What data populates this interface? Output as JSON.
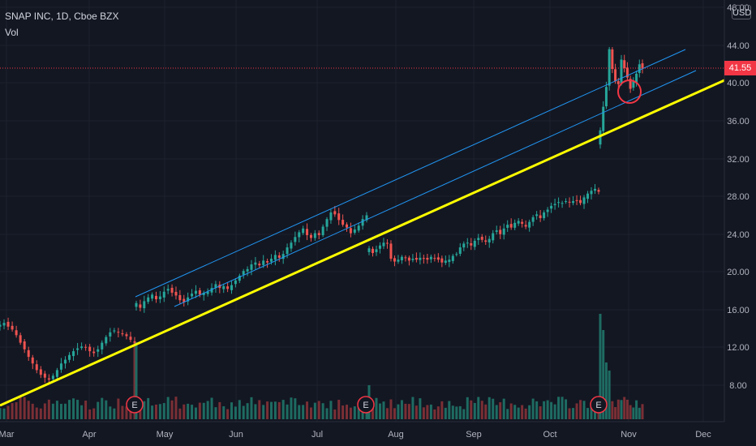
{
  "header": {
    "symbol_line": "SNAP INC, 1D, Cboe BZX",
    "indicator": "Vol",
    "currency": "USD"
  },
  "last_price": "41.55",
  "colors": {
    "background": "#131722",
    "grid": "#1e222d",
    "up": "#26a69a",
    "down": "#ef5350",
    "vol_up": "#1e6b62",
    "vol_down": "#7a2f35",
    "trendline": "#ffff00",
    "channel": "#2196f3",
    "circle": "#f23645",
    "earnings": "#f23645"
  },
  "chart_data": {
    "type": "candlestick",
    "y_ticks": [
      "8.00",
      "12.00",
      "16.00",
      "20.00",
      "24.00",
      "28.00",
      "32.00",
      "36.00",
      "40.00",
      "44.00",
      "48.00"
    ],
    "x_ticks": [
      "Mar",
      "Apr",
      "May",
      "Jun",
      "Jul",
      "Aug",
      "Sep",
      "Oct",
      "Nov",
      "Dec"
    ],
    "ylim": [
      4.2,
      48.5
    ],
    "last_price": 41.55,
    "series": [
      {
        "segment": "mar-apr",
        "date_range": [
          "Mar 1",
          "Apr 20"
        ],
        "closes": [
          14.4,
          14.6,
          14.2,
          13.9,
          13.3,
          12.5,
          11.8,
          11.0,
          10.3,
          9.6,
          9.1,
          8.8,
          8.6,
          9.0,
          9.6,
          10.3,
          10.7,
          11.2,
          11.6,
          11.9,
          12.1,
          12.0,
          11.6,
          11.4,
          11.8,
          12.5,
          13.1,
          13.6,
          13.8,
          13.6,
          13.4,
          13.2,
          12.8,
          12.5
        ]
      },
      {
        "segment": "may-jul",
        "date_range": [
          "Apr 21",
          "Jul 20"
        ],
        "closes": [
          16.7,
          16.2,
          16.9,
          17.3,
          17.6,
          17.1,
          17.4,
          17.9,
          18.2,
          17.8,
          17.5,
          17.0,
          16.8,
          17.3,
          17.7,
          18.0,
          17.6,
          17.8,
          17.9,
          18.3,
          18.7,
          18.3,
          18.5,
          18.2,
          18.6,
          19.1,
          19.6,
          20.1,
          20.3,
          20.8,
          21.0,
          20.7,
          21.2,
          21.0,
          21.4,
          21.8,
          21.5,
          21.9,
          22.6,
          23.1,
          23.7,
          24.2,
          24.6,
          23.9,
          23.6,
          24.1,
          23.9,
          24.8,
          25.6,
          26.3,
          26.1,
          25.5,
          25.0,
          24.7,
          24.1,
          24.5,
          24.9,
          25.6,
          26.0
        ]
      },
      {
        "segment": "aug-oct",
        "date_range": [
          "Jul 21",
          "Oct 23"
        ],
        "closes": [
          22.5,
          22.0,
          22.4,
          22.8,
          23.1,
          23.0,
          21.4,
          21.1,
          21.3,
          21.6,
          21.5,
          21.2,
          21.4,
          21.3,
          21.5,
          21.4,
          21.3,
          21.6,
          21.4,
          21.3,
          21.0,
          21.2,
          21.3,
          21.7,
          21.9,
          22.6,
          23.0,
          23.1,
          22.8,
          23.3,
          23.6,
          23.4,
          23.2,
          23.5,
          24.1,
          24.4,
          24.0,
          24.6,
          25.0,
          24.7,
          25.2,
          25.4,
          25.1,
          24.8,
          25.3,
          25.8,
          26.1,
          25.7,
          26.3,
          26.6,
          27.0,
          27.2,
          27.4,
          27.3,
          27.5,
          27.4,
          27.5,
          27.6,
          27.3,
          27.9,
          28.3,
          28.6,
          28.8,
          28.5
        ]
      },
      {
        "segment": "late-oct-nov",
        "date_range": [
          "Oct 24",
          "Nov 8"
        ],
        "closes": [
          35.0,
          37.5,
          39.6,
          43.6,
          41.5,
          40.2,
          39.9,
          42.5,
          41.6,
          40.6,
          39.4,
          40.2,
          41.0,
          42.0,
          41.55
        ]
      }
    ],
    "earnings_markers": [
      {
        "label": "E",
        "date": "Apr 21"
      },
      {
        "label": "E",
        "date": "Jul 21"
      },
      {
        "label": "E",
        "date": "Oct 22"
      }
    ]
  }
}
